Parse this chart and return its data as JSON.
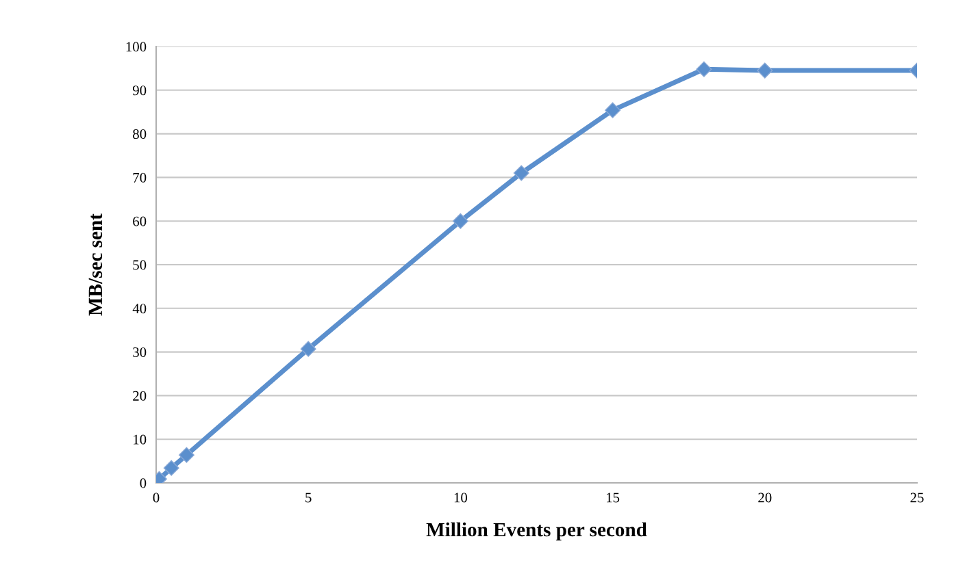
{
  "chart_data": {
    "type": "line",
    "xlabel": "Million Events per second",
    "ylabel": "MB/sec sent",
    "x": [
      0.1,
      0.5,
      1,
      5,
      10,
      12,
      15,
      18,
      20,
      25
    ],
    "series": [
      {
        "color": "#5b8fcd",
        "values": [
          0.9,
          3.4,
          6.4,
          30.7,
          60,
          71,
          85.4,
          94.8,
          94.5,
          94.5
        ]
      }
    ],
    "xlim": [
      0,
      25
    ],
    "xticks": [
      0,
      5,
      10,
      15,
      20,
      25
    ],
    "ylim": [
      0,
      100
    ],
    "yticks": [
      0,
      10,
      20,
      30,
      40,
      50,
      60,
      70,
      80,
      90,
      100
    ],
    "grid": "y",
    "marker": "diamond",
    "line_style": "solid",
    "legend": false
  }
}
